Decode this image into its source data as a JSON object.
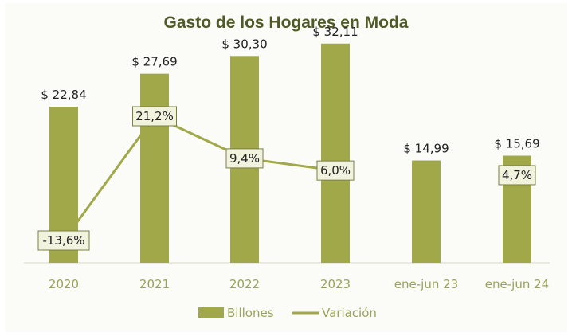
{
  "chart_data": {
    "type": "bar",
    "title": "Gasto de los Hogares en Moda",
    "categories": [
      "2020",
      "2021",
      "2022",
      "2023",
      "ene-jun 23",
      "ene-jun 24"
    ],
    "series": [
      {
        "name": "Billones",
        "type": "bar",
        "values": [
          22.84,
          27.69,
          30.3,
          32.11,
          14.99,
          15.69
        ],
        "labels": [
          "$ 22,84",
          "$ 27,69",
          "$ 30,30",
          "$ 32,11",
          "$ 14,99",
          "$ 15,69"
        ]
      },
      {
        "name": "Variación",
        "type": "line",
        "values": [
          -13.6,
          21.2,
          9.4,
          6.0,
          null,
          4.7
        ],
        "labels": [
          "-13,6%",
          "21,2%",
          "9,4%",
          "6,0%",
          "",
          "4,7%"
        ]
      }
    ],
    "ylim": [
      0,
      35
    ],
    "y2lim": [
      -18,
      40
    ],
    "grid": false,
    "legend": "bottom",
    "colors": {
      "bar": "#a1a84a",
      "line": "#a1a84a",
      "label_box": "#f2f3df",
      "text": "#222222",
      "axis_text": "#9aa35a",
      "title": "#4f5a28"
    }
  }
}
